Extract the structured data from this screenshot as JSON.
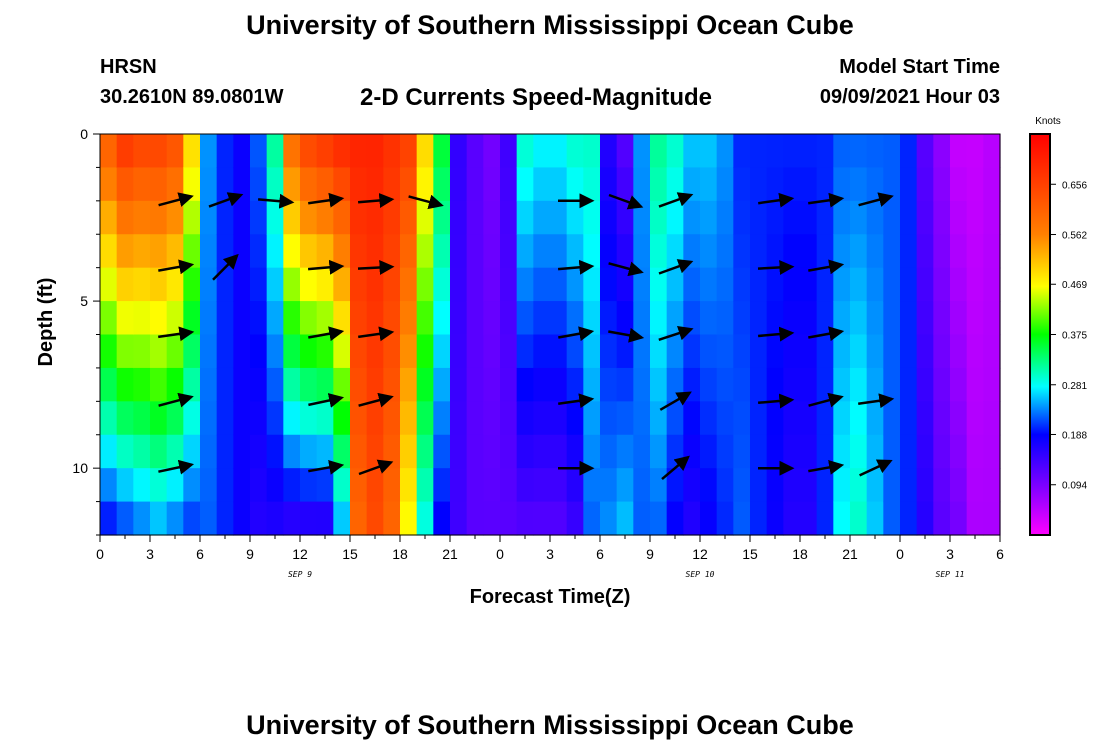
{
  "header": {
    "title_top": "University of Southern Mississippi Ocean Cube",
    "title_bottom": "University of Southern Mississippi Ocean Cube",
    "station": "HRSN",
    "coords": "30.2610N  89.0801W",
    "subtitle": "2-D Currents Speed-Magnitude",
    "start_label": "Model Start Time",
    "start_value": "09/09/2021 Hour 03"
  },
  "chart_data": {
    "type": "heatmap",
    "title": "2-D Currents Speed-Magnitude",
    "xlabel": "Forecast Time(Z)",
    "ylabel": "Depth (ft)",
    "x_range_hours": [
      0,
      54
    ],
    "x_tick_labels": [
      "0",
      "3",
      "6",
      "9",
      "12",
      "15",
      "18",
      "21",
      "0",
      "3",
      "6",
      "9",
      "12",
      "15",
      "18",
      "21",
      "0",
      "3",
      "6"
    ],
    "date_labels": [
      {
        "hour": 12,
        "text": "SEP 9"
      },
      {
        "hour": 36,
        "text": "SEP 10"
      },
      {
        "hour": 51,
        "text": "SEP 11"
      }
    ],
    "y_range_ft": [
      0,
      12
    ],
    "y_tick_labels": [
      "0",
      "5",
      "10"
    ],
    "y_tick_values": [
      0,
      5,
      10
    ],
    "colorbar": {
      "unit": "Knots",
      "min": 0.0,
      "max": 0.75,
      "tick_labels": [
        "0.656",
        "0.562",
        "0.469",
        "0.375",
        "0.281",
        "0.188",
        "0.094"
      ],
      "tick_values": [
        0.656,
        0.562,
        0.469,
        0.375,
        0.281,
        0.188,
        0.094
      ]
    },
    "speed_profiles": {
      "note_hours": [
        0,
        1,
        2,
        3,
        4,
        5,
        6,
        7,
        8,
        9,
        10,
        11,
        12,
        13,
        14,
        15,
        16,
        17,
        18,
        19,
        20,
        21,
        22,
        23,
        24,
        25,
        26,
        27,
        28,
        29,
        30,
        31,
        32,
        33,
        34,
        35,
        36,
        37,
        38,
        39,
        40,
        41,
        42,
        43,
        44,
        45,
        46,
        47,
        48,
        49,
        50,
        51,
        52,
        53,
        54
      ],
      "surface": [
        0.62,
        0.68,
        0.66,
        0.66,
        0.64,
        0.5,
        0.24,
        0.2,
        0.18,
        0.22,
        0.32,
        0.6,
        0.66,
        0.68,
        0.7,
        0.7,
        0.7,
        0.68,
        0.66,
        0.5,
        0.36,
        0.15,
        0.12,
        0.1,
        0.14,
        0.3,
        0.28,
        0.28,
        0.3,
        0.3,
        0.16,
        0.12,
        0.24,
        0.32,
        0.3,
        0.26,
        0.26,
        0.24,
        0.2,
        0.2,
        0.2,
        0.2,
        0.2,
        0.2,
        0.22,
        0.22,
        0.22,
        0.22,
        0.2,
        0.12,
        0.08,
        0.04,
        0.04,
        0.05,
        0.04
      ],
      "bottom": [
        0.18,
        0.2,
        0.22,
        0.24,
        0.22,
        0.2,
        0.22,
        0.2,
        0.18,
        0.16,
        0.16,
        0.14,
        0.14,
        0.14,
        0.24,
        0.6,
        0.64,
        0.6,
        0.46,
        0.28,
        0.18,
        0.14,
        0.12,
        0.12,
        0.12,
        0.12,
        0.12,
        0.12,
        0.14,
        0.22,
        0.24,
        0.26,
        0.22,
        0.22,
        0.18,
        0.16,
        0.18,
        0.2,
        0.22,
        0.2,
        0.18,
        0.16,
        0.16,
        0.2,
        0.28,
        0.3,
        0.26,
        0.22,
        0.2,
        0.16,
        0.12,
        0.1,
        0.06,
        0.06,
        0.06
      ]
    },
    "vectors": [
      {
        "hour": 4.5,
        "depth": 2,
        "speed": 0.5,
        "dir_deg": 15
      },
      {
        "hour": 7.5,
        "depth": 2,
        "speed": 0.5,
        "dir_deg": 20
      },
      {
        "hour": 10.5,
        "depth": 2,
        "speed": 0.5,
        "dir_deg": -5
      },
      {
        "hour": 13.5,
        "depth": 2,
        "speed": 0.5,
        "dir_deg": 8
      },
      {
        "hour": 16.5,
        "depth": 2,
        "speed": 0.5,
        "dir_deg": 5
      },
      {
        "hour": 19.5,
        "depth": 2,
        "speed": 0.5,
        "dir_deg": -15
      },
      {
        "hour": 28.5,
        "depth": 2,
        "speed": 0.5,
        "dir_deg": 0
      },
      {
        "hour": 31.5,
        "depth": 2,
        "speed": 0.5,
        "dir_deg": -20
      },
      {
        "hour": 34.5,
        "depth": 2,
        "speed": 0.5,
        "dir_deg": 20
      },
      {
        "hour": 40.5,
        "depth": 2,
        "speed": 0.5,
        "dir_deg": 8
      },
      {
        "hour": 43.5,
        "depth": 2,
        "speed": 0.5,
        "dir_deg": 8
      },
      {
        "hour": 46.5,
        "depth": 2,
        "speed": 0.5,
        "dir_deg": 15
      },
      {
        "hour": 4.5,
        "depth": 4,
        "speed": 0.5,
        "dir_deg": 10
      },
      {
        "hour": 7.5,
        "depth": 4,
        "speed": 0.5,
        "dir_deg": 45
      },
      {
        "hour": 13.5,
        "depth": 4,
        "speed": 0.5,
        "dir_deg": 5
      },
      {
        "hour": 16.5,
        "depth": 4,
        "speed": 0.5,
        "dir_deg": 3
      },
      {
        "hour": 28.5,
        "depth": 4,
        "speed": 0.5,
        "dir_deg": 5
      },
      {
        "hour": 31.5,
        "depth": 4,
        "speed": 0.5,
        "dir_deg": -15
      },
      {
        "hour": 34.5,
        "depth": 4,
        "speed": 0.5,
        "dir_deg": 20
      },
      {
        "hour": 40.5,
        "depth": 4,
        "speed": 0.5,
        "dir_deg": 3
      },
      {
        "hour": 43.5,
        "depth": 4,
        "speed": 0.5,
        "dir_deg": 10
      },
      {
        "hour": 4.5,
        "depth": 6,
        "speed": 0.5,
        "dir_deg": 8
      },
      {
        "hour": 13.5,
        "depth": 6,
        "speed": 0.5,
        "dir_deg": 10
      },
      {
        "hour": 16.5,
        "depth": 6,
        "speed": 0.5,
        "dir_deg": 8
      },
      {
        "hour": 28.5,
        "depth": 6,
        "speed": 0.5,
        "dir_deg": 10
      },
      {
        "hour": 31.5,
        "depth": 6,
        "speed": 0.5,
        "dir_deg": -10
      },
      {
        "hour": 34.5,
        "depth": 6,
        "speed": 0.5,
        "dir_deg": 18
      },
      {
        "hour": 40.5,
        "depth": 6,
        "speed": 0.5,
        "dir_deg": 5
      },
      {
        "hour": 43.5,
        "depth": 6,
        "speed": 0.5,
        "dir_deg": 10
      },
      {
        "hour": 4.5,
        "depth": 8,
        "speed": 0.5,
        "dir_deg": 15
      },
      {
        "hour": 13.5,
        "depth": 8,
        "speed": 0.5,
        "dir_deg": 12
      },
      {
        "hour": 16.5,
        "depth": 8,
        "speed": 0.5,
        "dir_deg": 15
      },
      {
        "hour": 28.5,
        "depth": 8,
        "speed": 0.5,
        "dir_deg": 8
      },
      {
        "hour": 34.5,
        "depth": 8,
        "speed": 0.5,
        "dir_deg": 30
      },
      {
        "hour": 40.5,
        "depth": 8,
        "speed": 0.5,
        "dir_deg": 5
      },
      {
        "hour": 43.5,
        "depth": 8,
        "speed": 0.5,
        "dir_deg": 15
      },
      {
        "hour": 46.5,
        "depth": 8,
        "speed": 0.5,
        "dir_deg": 8
      },
      {
        "hour": 4.5,
        "depth": 10,
        "speed": 0.5,
        "dir_deg": 12
      },
      {
        "hour": 13.5,
        "depth": 10,
        "speed": 0.5,
        "dir_deg": 10
      },
      {
        "hour": 16.5,
        "depth": 10,
        "speed": 0.5,
        "dir_deg": 20
      },
      {
        "hour": 28.5,
        "depth": 10,
        "speed": 0.5,
        "dir_deg": 0
      },
      {
        "hour": 34.5,
        "depth": 10,
        "speed": 0.5,
        "dir_deg": 40
      },
      {
        "hour": 40.5,
        "depth": 10,
        "speed": 0.5,
        "dir_deg": 0
      },
      {
        "hour": 43.5,
        "depth": 10,
        "speed": 0.5,
        "dir_deg": 10
      },
      {
        "hour": 46.5,
        "depth": 10,
        "speed": 0.5,
        "dir_deg": 25
      }
    ]
  }
}
